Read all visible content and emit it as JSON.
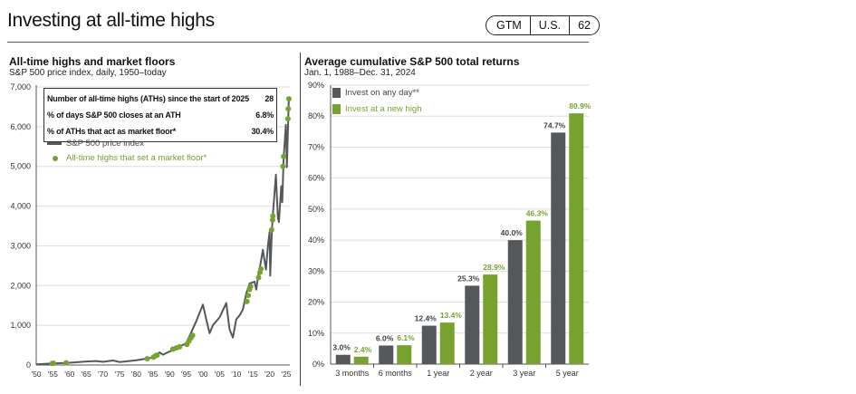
{
  "header": {
    "title": "Investing at all-time highs",
    "badge": [
      "GTM",
      "U.S.",
      "62"
    ]
  },
  "colors": {
    "gray": "#55585b",
    "green": "#77a22f"
  },
  "stats": [
    {
      "label": "Number of all-time highs (ATHs) since the start of 2025",
      "value": "28"
    },
    {
      "label": "% of days S&P 500 closes at an ATH",
      "value": "6.8%"
    },
    {
      "label": "% of ATHs that act as market floor*",
      "value": "30.4%"
    }
  ],
  "chart_data": [
    {
      "type": "line",
      "title": "All-time highs and market floors",
      "subtitle": "S&P 500 price index, daily, 1950–today",
      "ylim": [
        0,
        7000
      ],
      "yticks": [
        "0",
        "1,000",
        "2,000",
        "3,000",
        "4,000",
        "5,000",
        "6,000",
        "7,000"
      ],
      "xlim": [
        1950,
        2025.8
      ],
      "xticks": [
        "'50",
        "'55",
        "'60",
        "'65",
        "'70",
        "'75",
        "'80",
        "'85",
        "'90",
        "'95",
        "'00",
        "'05",
        "'10",
        "'15",
        "'20",
        "'25"
      ],
      "legend": [
        "S&P 500 price index",
        "All-time highs that set a market floor*"
      ],
      "series": {
        "name": "S&P 500 price index",
        "points": [
          [
            1950,
            17
          ],
          [
            1955,
            40
          ],
          [
            1960,
            58
          ],
          [
            1965,
            90
          ],
          [
            1968,
            100
          ],
          [
            1970,
            80
          ],
          [
            1973,
            115
          ],
          [
            1975,
            75
          ],
          [
            1980,
            120
          ],
          [
            1983,
            160
          ],
          [
            1985,
            190
          ],
          [
            1987,
            320
          ],
          [
            1988,
            260
          ],
          [
            1990,
            340
          ],
          [
            1993,
            460
          ],
          [
            1995,
            550
          ],
          [
            1998,
            1100
          ],
          [
            2000,
            1520
          ],
          [
            2001,
            1150
          ],
          [
            2002,
            800
          ],
          [
            2003,
            1000
          ],
          [
            2005,
            1200
          ],
          [
            2007,
            1560
          ],
          [
            2008,
            900
          ],
          [
            2009,
            690
          ],
          [
            2010,
            1150
          ],
          [
            2011,
            1250
          ],
          [
            2012,
            1400
          ],
          [
            2013,
            1800
          ],
          [
            2014,
            2050
          ],
          [
            2015.5,
            2100
          ],
          [
            2016,
            1900
          ],
          [
            2016.5,
            2200
          ],
          [
            2017.5,
            2650
          ],
          [
            2018,
            2900
          ],
          [
            2018.9,
            2400
          ],
          [
            2019.5,
            3000
          ],
          [
            2020,
            3350
          ],
          [
            2020.2,
            2250
          ],
          [
            2020.7,
            3400
          ],
          [
            2021,
            3800
          ],
          [
            2021.9,
            4790
          ],
          [
            2022.5,
            3700
          ],
          [
            2022.8,
            3600
          ],
          [
            2023.5,
            4500
          ],
          [
            2023.8,
            4100
          ],
          [
            2024.2,
            5200
          ],
          [
            2024.9,
            6050
          ],
          [
            2025.2,
            4980
          ],
          [
            2025.8,
            6750
          ]
        ]
      },
      "floors": [
        [
          1954.8,
          40
        ],
        [
          1955.2,
          45
        ],
        [
          1959,
          58
        ],
        [
          1983.3,
          160
        ],
        [
          1985.2,
          200
        ],
        [
          1985.8,
          230
        ],
        [
          1986.3,
          250
        ],
        [
          1991,
          400
        ],
        [
          1992,
          430
        ],
        [
          1993,
          460
        ],
        [
          1995.2,
          520
        ],
        [
          1995.8,
          600
        ],
        [
          1996.4,
          680
        ],
        [
          1996.9,
          750
        ],
        [
          2013.2,
          1600
        ],
        [
          2013.6,
          1750
        ],
        [
          2014,
          1900
        ],
        [
          2014.3,
          1980
        ],
        [
          2016.7,
          2200
        ],
        [
          2017.1,
          2330
        ],
        [
          2017.4,
          2420
        ],
        [
          2020.6,
          3400
        ],
        [
          2020.9,
          3650
        ],
        [
          2021,
          3750
        ],
        [
          2024,
          5000
        ],
        [
          2024.2,
          5250
        ],
        [
          2025.5,
          6200
        ],
        [
          2025.6,
          6450
        ],
        [
          2025.8,
          6700
        ]
      ]
    },
    {
      "type": "bar",
      "title": "Average cumulative S&P 500 total returns",
      "subtitle": "Jan. 1, 1988–Dec. 31, 2024",
      "ylim": [
        0,
        90
      ],
      "yticks": [
        "0%",
        "10%",
        "20%",
        "30%",
        "40%",
        "50%",
        "60%",
        "70%",
        "80%",
        "90%"
      ],
      "categories": [
        "3 months",
        "6 months",
        "1 year",
        "2 year",
        "3 year",
        "5 year"
      ],
      "series": [
        {
          "name": "Invest on any day**",
          "values": [
            3.0,
            6.0,
            12.4,
            25.3,
            40.0,
            74.7
          ],
          "labels": [
            "3.0%",
            "6.0%",
            "12.4%",
            "25.3%",
            "40.0%",
            "74.7%"
          ]
        },
        {
          "name": "Invest at a new high",
          "values": [
            2.4,
            6.1,
            13.4,
            28.9,
            46.3,
            80.9
          ],
          "labels": [
            "2.4%",
            "6.1%",
            "13.4%",
            "28.9%",
            "46.3%",
            "80.9%"
          ]
        }
      ]
    }
  ]
}
